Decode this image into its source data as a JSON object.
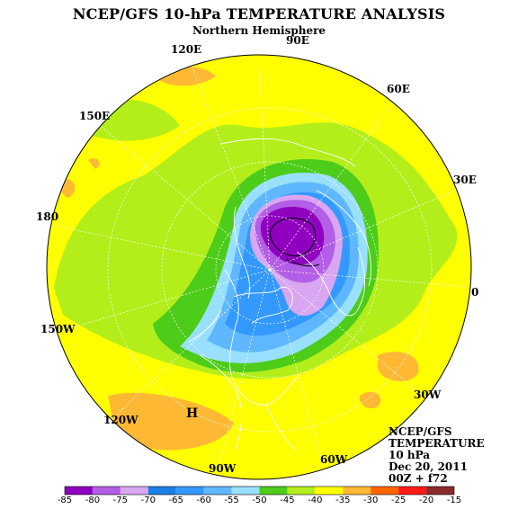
{
  "title": "NCEP/GFS 10-hPa TEMPERATURE ANALYSIS",
  "subtitle": "Northern Hemisphere",
  "longitude_labels": [
    "90E",
    "60E",
    "30E",
    "0",
    "30W",
    "60W",
    "90W",
    "120W",
    "150W",
    "180",
    "150E",
    "120E"
  ],
  "high_marker": "H",
  "info_block": {
    "line1": "NCEP/GFS",
    "line2": "TEMPERATURE",
    "line3": "10 hPa",
    "line4": "Dec 20, 2011",
    "line5": "00Z + f72"
  },
  "colorbar": {
    "ticks": [
      "-85",
      "-80",
      "-75",
      "-70",
      "-65",
      "-60",
      "-55",
      "-50",
      "-45",
      "-40",
      "-35",
      "-30",
      "-25",
      "-20",
      "-15"
    ],
    "colors": [
      "#8f00bf",
      "#b35ee6",
      "#d9a6f2",
      "#1a7fe6",
      "#3399ff",
      "#5fb8ff",
      "#99e0ff",
      "#4dcc1a",
      "#b3ee1a",
      "#ffff00",
      "#ffb833",
      "#ff6600",
      "#ff1a1a",
      "#8c2a2a",
      "#7f7f7f"
    ]
  },
  "field_colors": {
    "ocean_bg": "#ffff00",
    "cold_core": "#8f00bf",
    "outline": "#ffffff"
  }
}
